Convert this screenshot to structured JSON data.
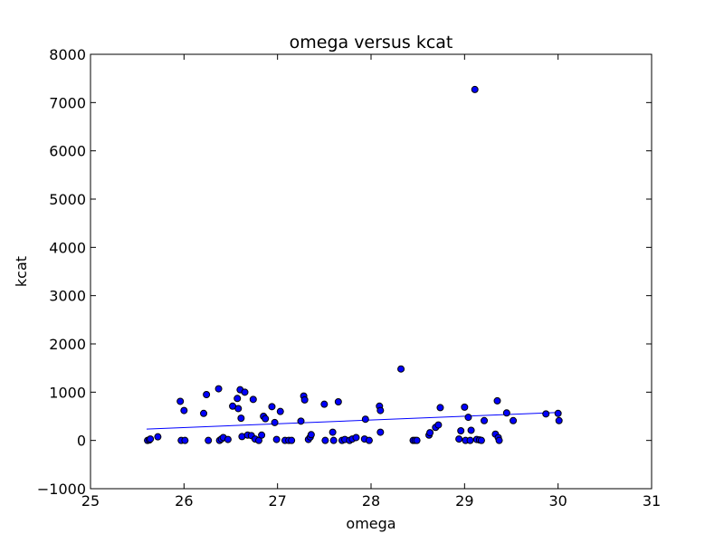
{
  "chart_data": {
    "type": "scatter",
    "title": "omega versus kcat",
    "xlabel": "omega",
    "ylabel": "kcat",
    "xlim": [
      25,
      31
    ],
    "ylim": [
      -1000,
      8000
    ],
    "xticks": [
      25,
      26,
      27,
      28,
      29,
      30,
      31
    ],
    "yticks": [
      -1000,
      0,
      1000,
      2000,
      3000,
      4000,
      5000,
      6000,
      7000,
      8000
    ],
    "xtick_labels": [
      "25",
      "26",
      "27",
      "28",
      "29",
      "30",
      "31"
    ],
    "ytick_labels": [
      "−1000",
      "0",
      "1000",
      "2000",
      "3000",
      "4000",
      "5000",
      "6000",
      "7000",
      "8000"
    ],
    "grid": false,
    "colors": {
      "marker_fill": "#0000ff",
      "marker_edge": "#000000",
      "fit_line": "#0000ff",
      "axes": "#000000"
    },
    "series": [
      {
        "type": "scatter",
        "points": [
          [
            25.61,
            0
          ],
          [
            25.63,
            10
          ],
          [
            25.64,
            30
          ],
          [
            25.72,
            75
          ],
          [
            25.96,
            810
          ],
          [
            25.97,
            0
          ],
          [
            26.0,
            620
          ],
          [
            26.01,
            0
          ],
          [
            26.21,
            560
          ],
          [
            26.24,
            950
          ],
          [
            26.26,
            0
          ],
          [
            26.37,
            1070
          ],
          [
            26.38,
            0
          ],
          [
            26.4,
            30
          ],
          [
            26.42,
            60
          ],
          [
            26.47,
            20
          ],
          [
            26.52,
            710
          ],
          [
            26.57,
            870
          ],
          [
            26.58,
            660
          ],
          [
            26.6,
            1050
          ],
          [
            26.61,
            460
          ],
          [
            26.62,
            80
          ],
          [
            26.65,
            1000
          ],
          [
            26.68,
            110
          ],
          [
            26.72,
            100
          ],
          [
            26.74,
            850
          ],
          [
            26.76,
            30
          ],
          [
            26.8,
            0
          ],
          [
            26.83,
            110
          ],
          [
            26.85,
            500
          ],
          [
            26.87,
            450
          ],
          [
            26.94,
            700
          ],
          [
            26.97,
            370
          ],
          [
            26.99,
            20
          ],
          [
            27.03,
            600
          ],
          [
            27.08,
            0
          ],
          [
            27.12,
            0
          ],
          [
            27.15,
            0
          ],
          [
            27.25,
            400
          ],
          [
            27.28,
            920
          ],
          [
            27.29,
            840
          ],
          [
            27.33,
            20
          ],
          [
            27.35,
            70
          ],
          [
            27.36,
            120
          ],
          [
            27.5,
            750
          ],
          [
            27.51,
            0
          ],
          [
            27.59,
            170
          ],
          [
            27.6,
            0
          ],
          [
            27.65,
            800
          ],
          [
            27.69,
            0
          ],
          [
            27.72,
            20
          ],
          [
            27.77,
            0
          ],
          [
            27.8,
            30
          ],
          [
            27.84,
            60
          ],
          [
            27.93,
            30
          ],
          [
            27.94,
            440
          ],
          [
            27.98,
            0
          ],
          [
            28.09,
            710
          ],
          [
            28.1,
            620
          ],
          [
            28.1,
            170
          ],
          [
            28.32,
            1480
          ],
          [
            28.45,
            0
          ],
          [
            28.47,
            0
          ],
          [
            28.49,
            0
          ],
          [
            28.62,
            110
          ],
          [
            28.63,
            160
          ],
          [
            28.69,
            270
          ],
          [
            28.72,
            320
          ],
          [
            28.74,
            680
          ],
          [
            28.94,
            30
          ],
          [
            28.96,
            200
          ],
          [
            29.0,
            690
          ],
          [
            29.01,
            0
          ],
          [
            29.04,
            480
          ],
          [
            29.06,
            0
          ],
          [
            29.07,
            210
          ],
          [
            29.11,
            7270
          ],
          [
            29.13,
            20
          ],
          [
            29.16,
            10
          ],
          [
            29.18,
            0
          ],
          [
            29.21,
            410
          ],
          [
            29.33,
            130
          ],
          [
            29.35,
            820
          ],
          [
            29.36,
            60
          ],
          [
            29.37,
            0
          ],
          [
            29.45,
            570
          ],
          [
            29.52,
            410
          ],
          [
            29.87,
            550
          ],
          [
            30.0,
            560
          ],
          [
            30.01,
            410
          ]
        ]
      },
      {
        "type": "line",
        "points": [
          [
            25.6,
            235
          ],
          [
            30.0,
            580
          ]
        ]
      }
    ]
  }
}
